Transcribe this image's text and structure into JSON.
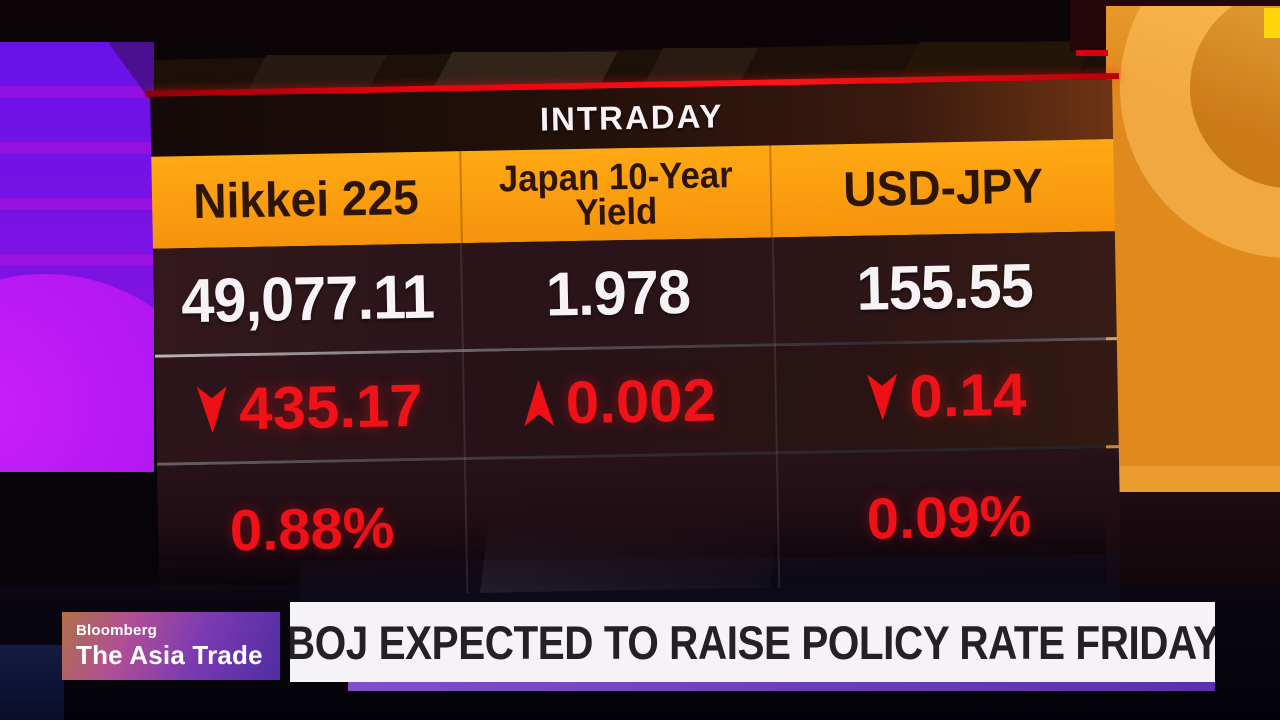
{
  "channel": {
    "brand": "Bloomberg",
    "show": "The Asia Trade"
  },
  "headline": {
    "text": "BOJ EXPECTED TO RAISE POLICY RATE FRIDAY"
  },
  "board": {
    "title": "INTRADAY",
    "columns": [
      {
        "name": "Nikkei 225",
        "value": "49,077.11",
        "direction": "down",
        "change": "435.17",
        "percent": "0.88%"
      },
      {
        "name": "Japan 10-Year Yield",
        "value": "1.978",
        "direction": "up",
        "change": "0.002",
        "percent": ""
      },
      {
        "name": "USD-JPY",
        "value": "155.55",
        "direction": "down",
        "change": "0.14",
        "percent": "0.09%"
      }
    ]
  },
  "colors": {
    "board_orange": "#F89E10",
    "alert_red": "#EF1018",
    "value_white": "#F6F2F6",
    "studio_purple": "#7A12E4",
    "studio_orange": "#E08A1D",
    "banner_purple": "#6A3FB8",
    "headline_bg": "#F5F3F6"
  },
  "chart_data": {
    "type": "table",
    "title": "INTRADAY",
    "columns": [
      "Nikkei 225",
      "Japan 10-Year Yield",
      "USD-JPY"
    ],
    "rows": [
      [
        "49,077.11",
        "1.978",
        "155.55"
      ],
      [
        "-435.17",
        "+0.002",
        "-0.14"
      ],
      [
        "0.88%",
        "",
        "0.09%"
      ]
    ]
  }
}
